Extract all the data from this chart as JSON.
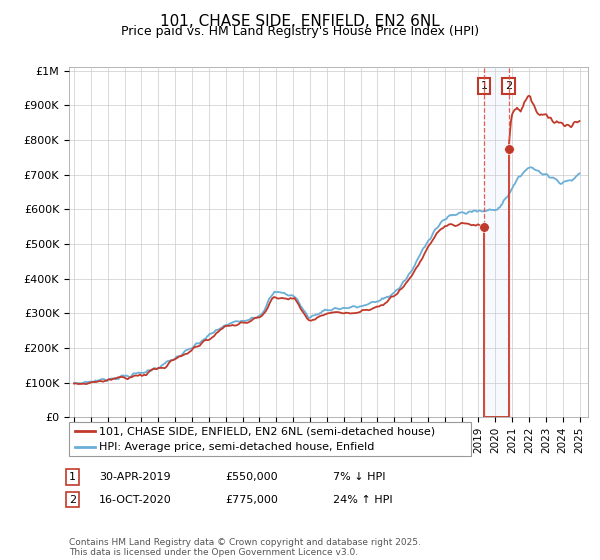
{
  "title": "101, CHASE SIDE, ENFIELD, EN2 6NL",
  "subtitle": "Price paid vs. HM Land Registry's House Price Index (HPI)",
  "footer": "Contains HM Land Registry data © Crown copyright and database right 2025.\nThis data is licensed under the Open Government Licence v3.0.",
  "legend_label_1": "101, CHASE SIDE, ENFIELD, EN2 6NL (semi-detached house)",
  "legend_label_2": "HPI: Average price, semi-detached house, Enfield",
  "transaction_1_date": "30-APR-2019",
  "transaction_1_price": "£550,000",
  "transaction_1_hpi": "7% ↓ HPI",
  "transaction_2_date": "16-OCT-2020",
  "transaction_2_price": "£775,000",
  "transaction_2_hpi": "24% ↑ HPI",
  "hpi_color": "#6baed6",
  "price_color": "#c0392b",
  "vline_color": "#e74c3c",
  "shade_color": "#ddeeff",
  "background_color": "#ffffff",
  "grid_color": "#cccccc",
  "ylim_max": 1000000,
  "yticks": [
    0,
    100000,
    200000,
    300000,
    400000,
    500000,
    600000,
    700000,
    800000,
    900000,
    1000000
  ],
  "ytick_labels": [
    "£0",
    "£100K",
    "£200K",
    "£300K",
    "£400K",
    "£500K",
    "£600K",
    "£700K",
    "£800K",
    "£900K",
    "£1M"
  ],
  "xlim_start": 1994.7,
  "xlim_end": 2025.5,
  "transaction_1_x": 2019.33,
  "transaction_2_x": 2020.79,
  "transaction_1_y": 550000,
  "transaction_2_y": 775000,
  "title_fontsize": 11,
  "subtitle_fontsize": 9,
  "tick_fontsize": 8,
  "legend_fontsize": 8,
  "footer_fontsize": 6.5
}
